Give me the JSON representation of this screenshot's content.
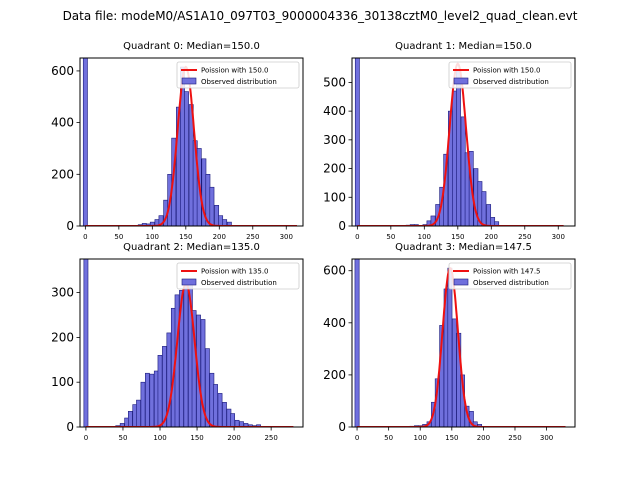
{
  "figure": {
    "title": "Data file: modeM0/AS1A10_097T03_9000004336_30138cztM0_level2_quad_clean.evt"
  },
  "colors": {
    "hist_fill": "#7070dd",
    "hist_edge": "#1a1a7a",
    "poisson_line": "#ee1111",
    "axes": "#000000"
  },
  "chart_data": [
    {
      "type": "bar",
      "title": "Quadrant 0: Median=150.0",
      "xlim": [
        -8,
        325
      ],
      "ylim": [
        0,
        650
      ],
      "xticks": [
        0,
        50,
        100,
        150,
        200,
        250,
        300
      ],
      "yticks": [
        0,
        200,
        400,
        600
      ],
      "bin_width": 6.3,
      "bins": [
        {
          "x": 0,
          "y": 650
        },
        {
          "x": 82,
          "y": 5
        },
        {
          "x": 88,
          "y": 10
        },
        {
          "x": 94,
          "y": 8
        },
        {
          "x": 100,
          "y": 15
        },
        {
          "x": 107,
          "y": 25
        },
        {
          "x": 113,
          "y": 40
        },
        {
          "x": 120,
          "y": 100
        },
        {
          "x": 126,
          "y": 200
        },
        {
          "x": 132,
          "y": 340
        },
        {
          "x": 139,
          "y": 460
        },
        {
          "x": 145,
          "y": 615
        },
        {
          "x": 151,
          "y": 520
        },
        {
          "x": 158,
          "y": 470
        },
        {
          "x": 164,
          "y": 330
        },
        {
          "x": 170,
          "y": 300
        },
        {
          "x": 177,
          "y": 260
        },
        {
          "x": 183,
          "y": 200
        },
        {
          "x": 189,
          "y": 150
        },
        {
          "x": 196,
          "y": 80
        },
        {
          "x": 202,
          "y": 40
        },
        {
          "x": 208,
          "y": 25
        },
        {
          "x": 215,
          "y": 15
        }
      ],
      "poisson_mean": 150.0,
      "poisson_peak": 615,
      "poisson_range": [
        0,
        316
      ],
      "legend": [
        "Poission with 150.0",
        "Observed distribution"
      ]
    },
    {
      "type": "bar",
      "title": "Quadrant 1: Median=150.0",
      "xlim": [
        -8,
        325
      ],
      "ylim": [
        0,
        585
      ],
      "xticks": [
        0,
        50,
        100,
        150,
        200,
        250,
        300
      ],
      "yticks": [
        0,
        100,
        200,
        300,
        400,
        500
      ],
      "bin_width": 6.3,
      "bins": [
        {
          "x": 0,
          "y": 585
        },
        {
          "x": 76,
          "y": 3
        },
        {
          "x": 82,
          "y": 5
        },
        {
          "x": 88,
          "y": 5
        },
        {
          "x": 101,
          "y": 5
        },
        {
          "x": 107,
          "y": 18
        },
        {
          "x": 113,
          "y": 35
        },
        {
          "x": 120,
          "y": 75
        },
        {
          "x": 126,
          "y": 135
        },
        {
          "x": 132,
          "y": 250
        },
        {
          "x": 139,
          "y": 400
        },
        {
          "x": 145,
          "y": 470
        },
        {
          "x": 151,
          "y": 540
        },
        {
          "x": 158,
          "y": 380
        },
        {
          "x": 164,
          "y": 255
        },
        {
          "x": 170,
          "y": 260
        },
        {
          "x": 177,
          "y": 200
        },
        {
          "x": 183,
          "y": 155
        },
        {
          "x": 189,
          "y": 120
        },
        {
          "x": 196,
          "y": 75
        },
        {
          "x": 202,
          "y": 30
        },
        {
          "x": 208,
          "y": 15
        }
      ],
      "poisson_mean": 150.0,
      "poisson_peak": 565,
      "poisson_range": [
        0,
        308
      ],
      "legend": [
        "Poission with 150.0",
        "Observed distribution"
      ]
    },
    {
      "type": "bar",
      "title": "Quadrant 2: Median=135.0",
      "xlim": [
        -8,
        293
      ],
      "ylim": [
        0,
        375
      ],
      "xticks": [
        0,
        50,
        100,
        150,
        200,
        250
      ],
      "yticks": [
        0,
        100,
        200,
        300
      ],
      "bin_width": 5.6,
      "bins": [
        {
          "x": 0,
          "y": 375
        },
        {
          "x": 43,
          "y": 3
        },
        {
          "x": 49,
          "y": 8
        },
        {
          "x": 55,
          "y": 20
        },
        {
          "x": 60,
          "y": 35
        },
        {
          "x": 66,
          "y": 50
        },
        {
          "x": 71,
          "y": 60
        },
        {
          "x": 77,
          "y": 100
        },
        {
          "x": 83,
          "y": 120
        },
        {
          "x": 89,
          "y": 118
        },
        {
          "x": 95,
          "y": 125
        },
        {
          "x": 100,
          "y": 160
        },
        {
          "x": 106,
          "y": 180
        },
        {
          "x": 112,
          "y": 210
        },
        {
          "x": 118,
          "y": 265
        },
        {
          "x": 123,
          "y": 295
        },
        {
          "x": 129,
          "y": 305
        },
        {
          "x": 135,
          "y": 320
        },
        {
          "x": 141,
          "y": 325
        },
        {
          "x": 146,
          "y": 260
        },
        {
          "x": 152,
          "y": 250
        },
        {
          "x": 158,
          "y": 240
        },
        {
          "x": 164,
          "y": 175
        },
        {
          "x": 170,
          "y": 120
        },
        {
          "x": 175,
          "y": 95
        },
        {
          "x": 181,
          "y": 75
        },
        {
          "x": 187,
          "y": 55
        },
        {
          "x": 193,
          "y": 40
        },
        {
          "x": 198,
          "y": 30
        },
        {
          "x": 204,
          "y": 15
        },
        {
          "x": 210,
          "y": 12
        },
        {
          "x": 216,
          "y": 8
        },
        {
          "x": 222,
          "y": 5
        },
        {
          "x": 228,
          "y": 3
        },
        {
          "x": 233,
          "y": 5
        }
      ],
      "poisson_mean": 135.0,
      "poisson_peak": 320,
      "poisson_range": [
        0,
        280
      ],
      "legend": [
        "Poission with 135.0",
        "Observed distribution"
      ]
    },
    {
      "type": "bar",
      "title": "Quadrant 3: Median=147.5",
      "xlim": [
        -8,
        345
      ],
      "ylim": [
        0,
        645
      ],
      "xticks": [
        0,
        50,
        100,
        150,
        200,
        250,
        300
      ],
      "yticks": [
        0,
        200,
        400,
        600
      ],
      "bin_width": 6.7,
      "bins": [
        {
          "x": 0,
          "y": 645
        },
        {
          "x": 87,
          "y": 3
        },
        {
          "x": 94,
          "y": 5
        },
        {
          "x": 100,
          "y": 5
        },
        {
          "x": 107,
          "y": 10
        },
        {
          "x": 114,
          "y": 20
        },
        {
          "x": 121,
          "y": 95
        },
        {
          "x": 127,
          "y": 185
        },
        {
          "x": 134,
          "y": 390
        },
        {
          "x": 141,
          "y": 530
        },
        {
          "x": 147,
          "y": 610
        },
        {
          "x": 154,
          "y": 415
        },
        {
          "x": 161,
          "y": 360
        },
        {
          "x": 167,
          "y": 200
        },
        {
          "x": 174,
          "y": 80
        },
        {
          "x": 181,
          "y": 60
        },
        {
          "x": 187,
          "y": 20
        },
        {
          "x": 194,
          "y": 10
        }
      ],
      "poisson_mean": 147.5,
      "poisson_peak": 610,
      "poisson_range": [
        0,
        330
      ],
      "legend": [
        "Poission with 147.5",
        "Observed distribution"
      ]
    }
  ]
}
